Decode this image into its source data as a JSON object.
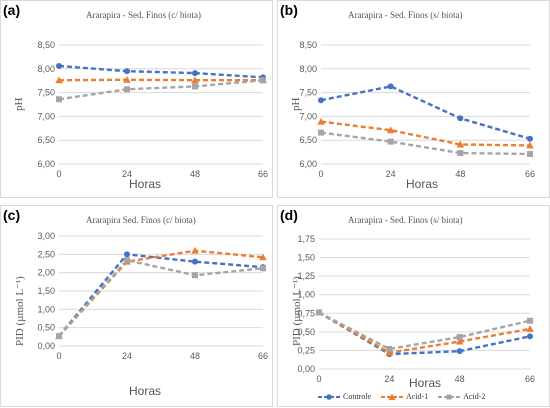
{
  "colors": {
    "controle": "#4472C4",
    "acid1": "#ED7D31",
    "acid2": "#A5A5A5",
    "grid": "#d9d9d9",
    "tick": "#595959"
  },
  "legend": [
    {
      "name": "Controle",
      "color": "#4472C4",
      "marker": "circle"
    },
    {
      "name": "Acid-1",
      "color": "#ED7D31",
      "marker": "triangle"
    },
    {
      "name": "Acid-2",
      "color": "#A5A5A5",
      "marker": "square"
    }
  ],
  "chart_data": [
    {
      "panel": "(a)",
      "type": "line",
      "title": "Ararapira - Sed. Finos (c/ biota)",
      "xlabel": "Horas",
      "ylabel": "pH",
      "x": [
        "0",
        "24",
        "48",
        "66"
      ],
      "ylim": [
        6.0,
        8.5
      ],
      "yticks": [
        "6,00",
        "6,50",
        "7,00",
        "7,50",
        "8,00",
        "8,50"
      ],
      "grid": true,
      "series": [
        {
          "name": "Controle",
          "values": [
            8.06,
            7.95,
            7.91,
            7.82
          ]
        },
        {
          "name": "Acid-1",
          "values": [
            7.76,
            7.77,
            7.76,
            7.76
          ]
        },
        {
          "name": "Acid-2",
          "values": [
            7.36,
            7.57,
            7.63,
            7.76
          ]
        }
      ]
    },
    {
      "panel": "(b)",
      "type": "line",
      "title": "Ararapira - Sed. Finos (s/ biota)",
      "xlabel": "Horas",
      "ylabel": "pH",
      "x": [
        "0",
        "24",
        "48",
        "66"
      ],
      "ylim": [
        6.0,
        8.5
      ],
      "yticks": [
        "6,00",
        "6,50",
        "7,00",
        "7,50",
        "8,00",
        "8,50"
      ],
      "grid": true,
      "series": [
        {
          "name": "Controle",
          "values": [
            7.34,
            7.63,
            6.96,
            6.53
          ]
        },
        {
          "name": "Acid-1",
          "values": [
            6.89,
            6.71,
            6.41,
            6.39
          ]
        },
        {
          "name": "Acid-2",
          "values": [
            6.66,
            6.47,
            6.23,
            6.21
          ]
        }
      ]
    },
    {
      "panel": "(c)",
      "type": "line",
      "title": "Ararapira Sed. Finos (c/ biota)",
      "xlabel": "Horas",
      "ylabel": "PID (µmol L⁻¹)",
      "x": [
        "0",
        "24",
        "48",
        "66"
      ],
      "ylim": [
        0,
        3.0
      ],
      "yticks": [
        "0,00",
        "0,50",
        "1,00",
        "1,50",
        "2,00",
        "2,50",
        "3,00"
      ],
      "grid": true,
      "series": [
        {
          "name": "Controle",
          "values": [
            0.27,
            2.5,
            2.3,
            2.15
          ]
        },
        {
          "name": "Acid-1",
          "values": [
            0.27,
            2.3,
            2.6,
            2.42
          ]
        },
        {
          "name": "Acid-2",
          "values": [
            0.27,
            2.34,
            1.93,
            2.12
          ]
        }
      ]
    },
    {
      "panel": "(d)",
      "type": "line",
      "title": "Ararapira - Sed. Finos (s/ biota)",
      "xlabel": "Horas",
      "ylabel": "PID (µmol L⁻¹)",
      "x": [
        "0",
        "24",
        "48",
        "66"
      ],
      "ylim": [
        0,
        1.75
      ],
      "yticks": [
        "0,00",
        "0,25",
        "0,50",
        "0,75",
        "1,00",
        "1,25",
        "1,50",
        "1,75"
      ],
      "grid": true,
      "series": [
        {
          "name": "Controle",
          "values": [
            0.76,
            0.2,
            0.24,
            0.44
          ]
        },
        {
          "name": "Acid-1",
          "values": [
            0.76,
            0.22,
            0.37,
            0.54
          ]
        },
        {
          "name": "Acid-2",
          "values": [
            0.76,
            0.27,
            0.43,
            0.65
          ]
        }
      ]
    }
  ]
}
